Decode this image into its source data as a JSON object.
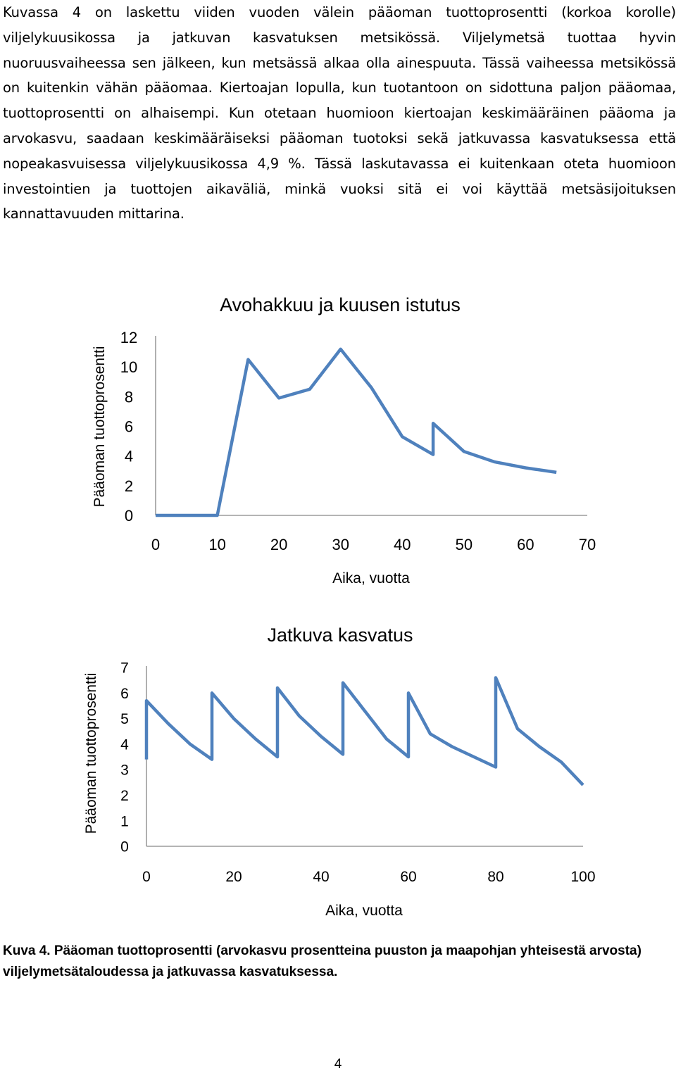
{
  "body_text": "Kuvassa 4 on laskettu viiden vuoden välein pääoman tuottoprosentti (korkoa korolle) viljelykuusikossa ja jatkuvan kasvatuksen metsikössä. Viljelymetsä tuottaa hyvin nuoruusvaiheessa sen jälkeen, kun metsässä alkaa olla ainespuuta. Tässä vaiheessa metsikössä on kuitenkin vähän pääomaa. Kiertoajan lopulla, kun tuotantoon on sidottuna paljon pääomaa, tuottoprosentti on alhaisempi. Kun otetaan huomioon kiertoajan keskimääräinen pääoma ja arvokasvu, saadaan keskimääräiseksi pääoman tuotoksi sekä jatkuvassa kasvatuksessa että nopeakasvuisessa viljelykuusikossa 4,9 %. Tässä laskutavassa ei kuitenkaan oteta huomioon investointien ja tuottojen aikaväliä, minkä vuoksi sitä ei voi käyttää metsäsijoituksen kannattavuuden mittarina.",
  "chart_data": [
    {
      "type": "line",
      "title": "Avohakkuu ja kuusen istutus",
      "xlabel": "Aika, vuotta",
      "ylabel": "Pääoman tuottoprosentti",
      "xlim": [
        0,
        70
      ],
      "ylim": [
        0,
        12
      ],
      "xticks": [
        "0",
        "10",
        "20",
        "30",
        "40",
        "50",
        "60",
        "70"
      ],
      "yticks": [
        "0",
        "2",
        "4",
        "6",
        "8",
        "10",
        "12"
      ],
      "grid": false,
      "line_color": "#4f81bd",
      "x": [
        0,
        10,
        15,
        20,
        25,
        30,
        35,
        40,
        45,
        45,
        50,
        55,
        60,
        65
      ],
      "y": [
        0,
        0,
        10.5,
        7.9,
        8.5,
        11.2,
        8.6,
        5.3,
        4.1,
        6.2,
        4.3,
        3.6,
        3.2,
        2.9
      ]
    },
    {
      "type": "line",
      "title": "Jatkuva kasvatus",
      "xlabel": "Aika, vuotta",
      "ylabel": "Pääoman tuottoprosentti",
      "xlim": [
        0,
        100
      ],
      "ylim": [
        0,
        7
      ],
      "xticks": [
        "0",
        "20",
        "40",
        "60",
        "80",
        "100"
      ],
      "yticks": [
        "0",
        "1",
        "2",
        "3",
        "4",
        "5",
        "6",
        "7"
      ],
      "grid": false,
      "line_color": "#4f81bd",
      "x": [
        0,
        0,
        5,
        10,
        15,
        15,
        20,
        25,
        30,
        30,
        35,
        40,
        45,
        45,
        50,
        55,
        60,
        60,
        65,
        70,
        75,
        80,
        80,
        85,
        90,
        95,
        100
      ],
      "y": [
        3.4,
        5.7,
        4.8,
        4.0,
        3.4,
        6.0,
        5.0,
        4.2,
        3.5,
        6.2,
        5.1,
        4.3,
        3.6,
        6.4,
        5.3,
        4.2,
        3.5,
        6.0,
        4.4,
        3.9,
        3.5,
        3.1,
        6.6,
        4.6,
        3.9,
        3.3,
        2.4
      ]
    }
  ],
  "caption": {
    "label": "Kuva 4.",
    "text": "Pääoman tuottoprosentti (arvokasvu prosentteina puuston ja maapohjan yhteisestä arvosta) viljelymetsätaloudessa ja jatkuvassa kasvatuksessa."
  },
  "page_number": "4"
}
